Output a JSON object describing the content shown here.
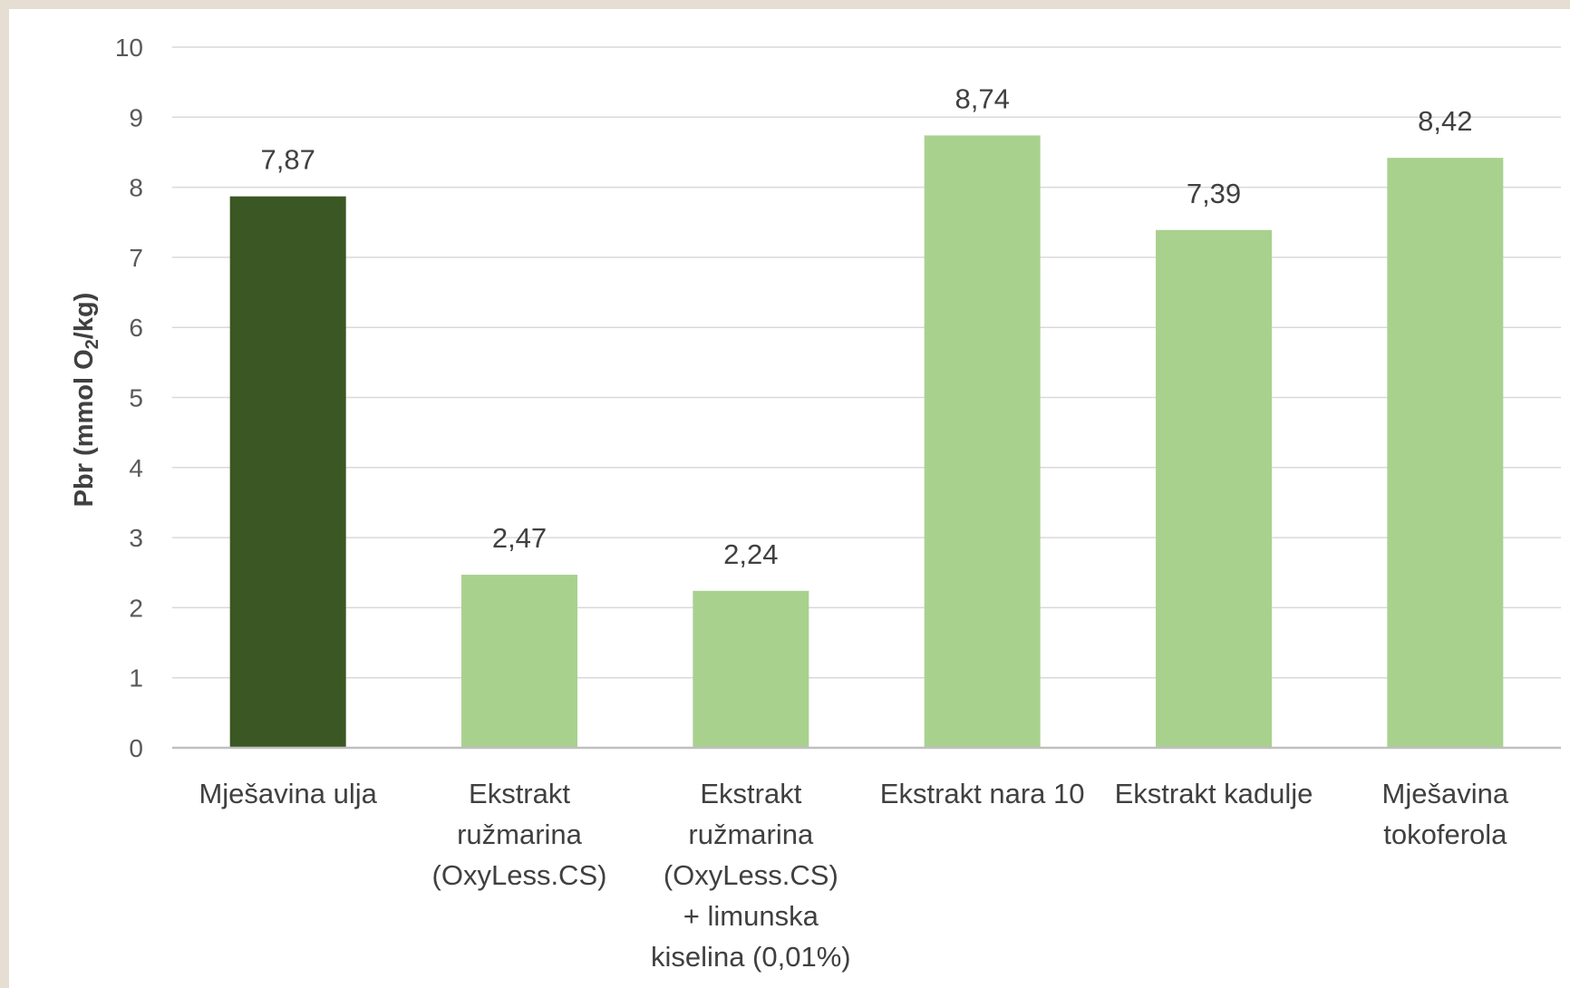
{
  "chart_data": {
    "type": "bar",
    "categories": [
      [
        "Mješavina ulja"
      ],
      [
        "Ekstrakt",
        "ružmarina",
        "(OxyLess.CS)"
      ],
      [
        "Ekstrakt",
        "ružmarina",
        "(OxyLess.CS)",
        "+ limunska",
        "kiselina (0,01%)"
      ],
      [
        "Ekstrakt nara 10"
      ],
      [
        "Ekstrakt kadulje"
      ],
      [
        "Mješavina",
        "tokoferola"
      ]
    ],
    "values": [
      7.87,
      2.47,
      2.24,
      8.74,
      7.39,
      8.42
    ],
    "value_labels": [
      "7,87",
      "2,47",
      "2,24",
      "8,74",
      "7,39",
      "8,42"
    ],
    "bar_colors": [
      "#3b5723",
      "#a9d18e",
      "#a9d18e",
      "#a9d18e",
      "#a9d18e",
      "#a9d18e"
    ],
    "ylabel": {
      "before": "Pbr (mmol O",
      "subscript": "2",
      "after": "/kg)"
    },
    "ylim": [
      0,
      10
    ],
    "yticks": [
      0,
      1,
      2,
      3,
      4,
      5,
      6,
      7,
      8,
      9,
      10
    ],
    "grid": true,
    "legend": "none"
  }
}
